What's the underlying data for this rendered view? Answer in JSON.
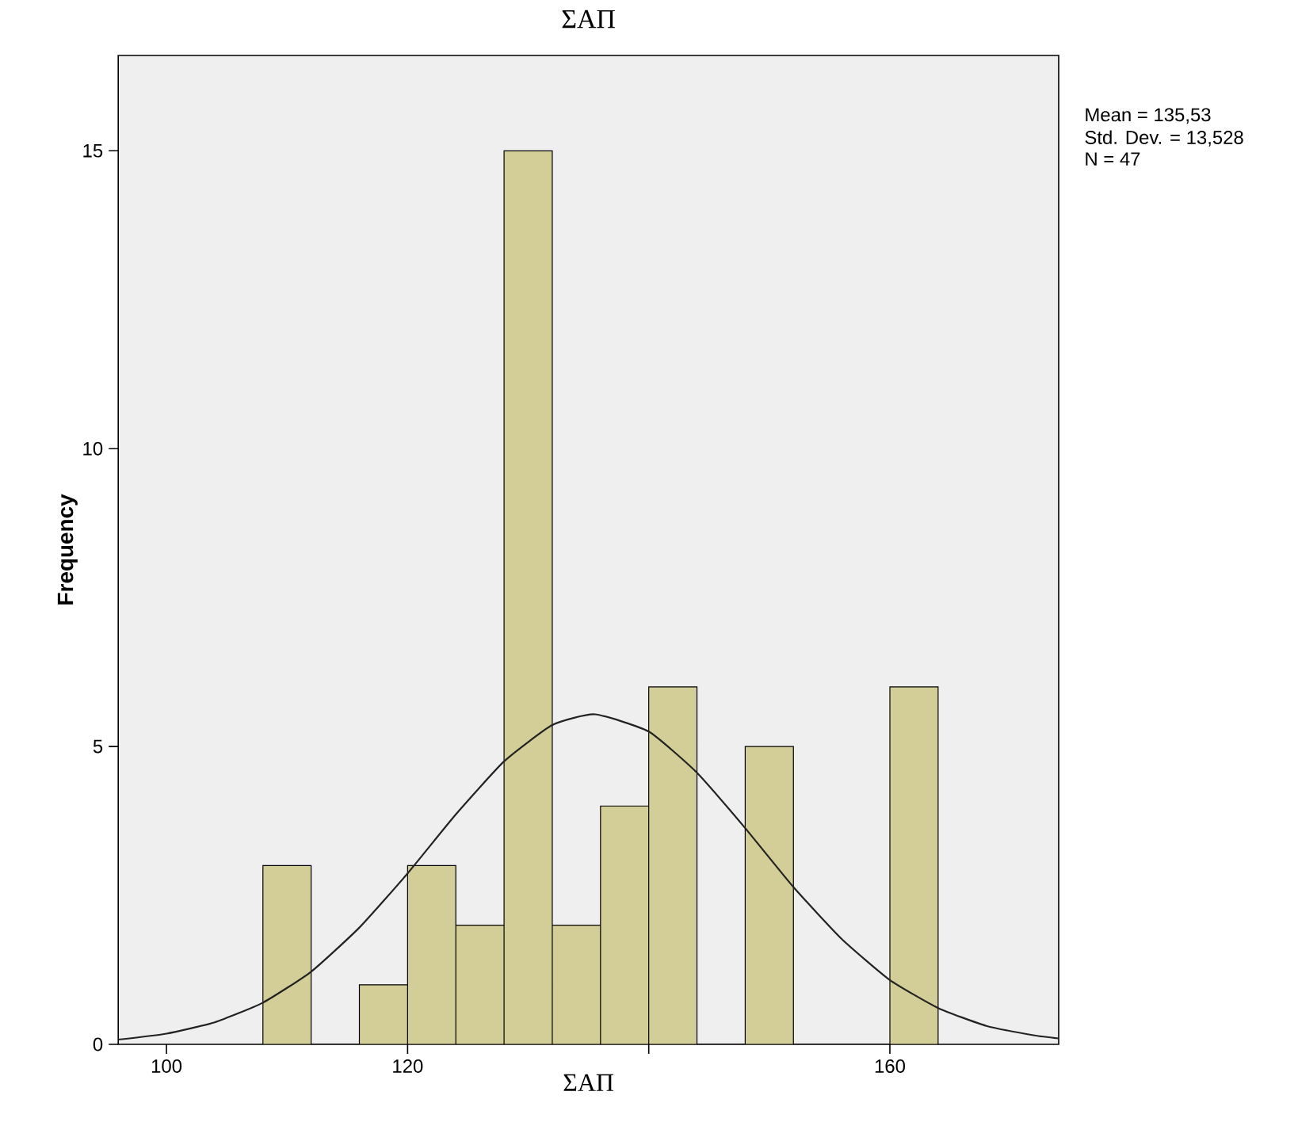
{
  "chart_data": {
    "type": "histogram",
    "title": "ΣΑΠ",
    "xlabel": "ΣΑΠ",
    "ylabel": "Frequency",
    "bins": [
      108,
      112,
      116,
      120,
      124,
      128,
      132,
      136,
      140,
      144,
      148,
      152,
      156,
      160,
      164
    ],
    "values": [
      3,
      0,
      1,
      3,
      2,
      15,
      2,
      4,
      6,
      0,
      5,
      0,
      0,
      6
    ],
    "color": "#d3ce97",
    "series": [
      {
        "type": "line",
        "color": "#222222",
        "x": [
          96,
          100,
          104,
          108,
          112,
          116,
          120,
          124,
          128,
          132,
          135.53,
          140,
          144,
          148,
          152,
          156,
          160,
          164,
          168,
          172,
          174
        ],
        "values": [
          0.08,
          0.18,
          0.37,
          0.7,
          1.22,
          1.96,
          2.87,
          3.86,
          4.75,
          5.36,
          5.54,
          5.25,
          4.56,
          3.63,
          2.64,
          1.77,
          1.08,
          0.61,
          0.31,
          0.15,
          0.1
        ]
      }
    ],
    "xlim": [
      96,
      174
    ],
    "ylim": [
      0,
      16.6
    ],
    "xticks": [
      100,
      120,
      {
        "value": 140,
        "label": null
      },
      160
    ],
    "yticks": [
      0,
      5,
      10,
      15
    ],
    "annotations": [
      "Mean = 135,53",
      "Std. Dev. = 13,528",
      "N = 47"
    ]
  }
}
